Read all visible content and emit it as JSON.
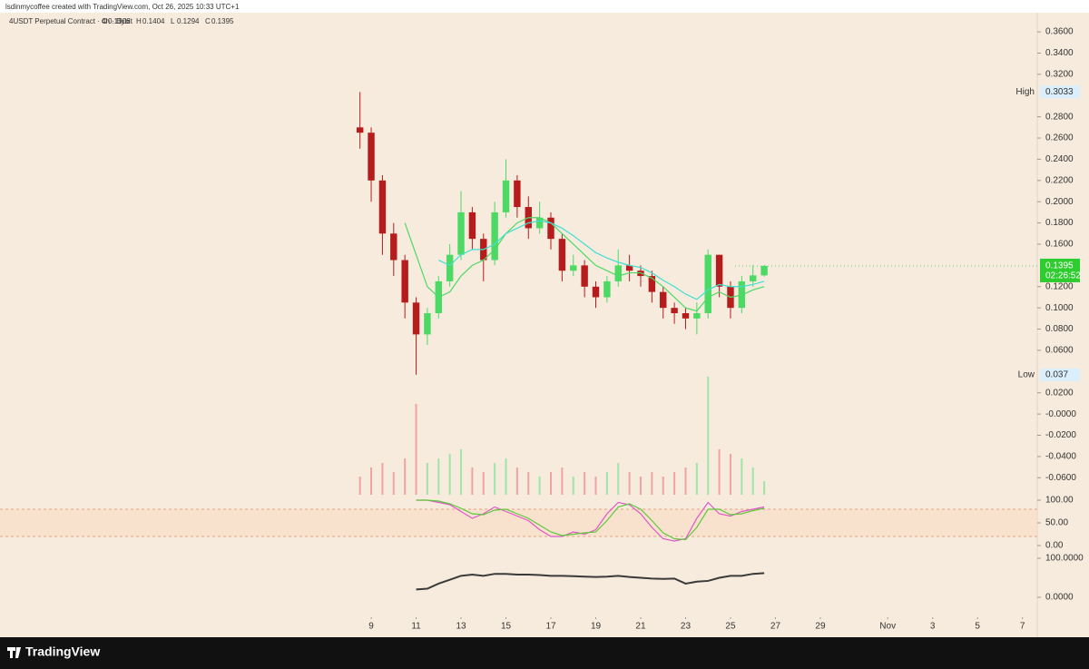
{
  "header": {
    "watermark": "lsdinmycoffee created with TradingView.com, Oct 26, 2025 10:33 UTC+1",
    "symbol": "4USDT Perpetual Contract · 4h · Bybit",
    "ohlc": [
      {
        "label": "O",
        "value": 0.1306
      },
      {
        "label": "H",
        "value": 0.1404
      },
      {
        "label": "L",
        "value": 0.1294
      },
      {
        "label": "C",
        "value": 0.1395
      }
    ]
  },
  "footer": {
    "brand": "TradingView"
  },
  "chart_data": {
    "type": "candlestick",
    "x": [
      8.5,
      9,
      9.5,
      10,
      10.5,
      11,
      11.5,
      12,
      12.5,
      13,
      13.5,
      14,
      14.5,
      15,
      15.5,
      16,
      16.5,
      17,
      17.5,
      18,
      18.5,
      19,
      19.5,
      20,
      20.5,
      21,
      21.5,
      22,
      22.5,
      23,
      23.5,
      24,
      24.5,
      25,
      25.5,
      26,
      26.5
    ],
    "open": [
      0.27,
      0.265,
      0.22,
      0.17,
      0.145,
      0.105,
      0.075,
      0.095,
      0.125,
      0.15,
      0.19,
      0.165,
      0.145,
      0.19,
      0.22,
      0.195,
      0.175,
      0.185,
      0.165,
      0.135,
      0.14,
      0.12,
      0.11,
      0.125,
      0.14,
      0.135,
      0.13,
      0.115,
      0.1,
      0.095,
      0.09,
      0.095,
      0.15,
      0.12,
      0.1,
      0.125,
      0.1306
    ],
    "high": [
      0.3033,
      0.27,
      0.225,
      0.18,
      0.15,
      0.11,
      0.1,
      0.13,
      0.16,
      0.21,
      0.195,
      0.17,
      0.2,
      0.24,
      0.225,
      0.205,
      0.2,
      0.19,
      0.17,
      0.15,
      0.145,
      0.125,
      0.13,
      0.155,
      0.15,
      0.14,
      0.135,
      0.12,
      0.105,
      0.1,
      0.105,
      0.155,
      0.15,
      0.125,
      0.13,
      0.14,
      0.1404
    ],
    "low": [
      0.25,
      0.2,
      0.15,
      0.13,
      0.09,
      0.037,
      0.065,
      0.09,
      0.12,
      0.145,
      0.155,
      0.125,
      0.14,
      0.185,
      0.185,
      0.165,
      0.17,
      0.155,
      0.125,
      0.13,
      0.11,
      0.1,
      0.105,
      0.12,
      0.125,
      0.12,
      0.105,
      0.09,
      0.085,
      0.08,
      0.075,
      0.09,
      0.11,
      0.09,
      0.095,
      0.12,
      0.1294
    ],
    "close": [
      0.265,
      0.22,
      0.17,
      0.145,
      0.105,
      0.075,
      0.095,
      0.125,
      0.15,
      0.19,
      0.165,
      0.145,
      0.19,
      0.22,
      0.195,
      0.175,
      0.185,
      0.165,
      0.135,
      0.14,
      0.12,
      0.11,
      0.125,
      0.14,
      0.135,
      0.13,
      0.115,
      0.1,
      0.095,
      0.09,
      0.095,
      0.15,
      0.12,
      0.1,
      0.125,
      0.1306,
      0.1395
    ],
    "volume": [
      20,
      30,
      35,
      25,
      40,
      100,
      35,
      40,
      45,
      50,
      30,
      25,
      35,
      40,
      30,
      25,
      20,
      25,
      30,
      20,
      25,
      20,
      25,
      35,
      25,
      20,
      25,
      20,
      25,
      30,
      35,
      130,
      50,
      45,
      40,
      30,
      15
    ],
    "series": [
      {
        "color": "#4cd964",
        "values": [
          null,
          null,
          null,
          null,
          0.18,
          0.15,
          0.12,
          0.11,
          0.115,
          0.13,
          0.14,
          0.145,
          0.155,
          0.17,
          0.18,
          0.185,
          0.185,
          0.18,
          0.17,
          0.16,
          0.15,
          0.14,
          0.135,
          0.13,
          0.133,
          0.133,
          0.128,
          0.12,
          0.11,
          0.1,
          0.097,
          0.11,
          0.115,
          0.11,
          0.112,
          0.117,
          0.12
        ]
      },
      {
        "color": "#40e0d0",
        "values": [
          null,
          null,
          null,
          null,
          null,
          null,
          null,
          0.145,
          0.14,
          0.15,
          0.155,
          0.155,
          0.16,
          0.17,
          0.175,
          0.18,
          0.182,
          0.18,
          0.175,
          0.168,
          0.16,
          0.152,
          0.147,
          0.143,
          0.14,
          0.138,
          0.133,
          0.126,
          0.12,
          0.113,
          0.108,
          0.117,
          0.122,
          0.12,
          0.12,
          0.122,
          0.125
        ]
      }
    ],
    "up_color": "#4cd964",
    "down_color": "#b71c1c",
    "xlim": [
      -7.53,
      38.66
    ],
    "xticks": [
      9,
      11,
      13,
      15,
      17,
      19,
      21,
      23,
      25,
      27,
      29,
      {
        "value": 32,
        "label": "Nov"
      },
      {
        "value": 34,
        "label": "3"
      },
      {
        "value": 36,
        "label": "5"
      },
      {
        "value": 38,
        "label": "7"
      }
    ],
    "ylim": [
      -0.076,
      0.39
    ],
    "yticks": [
      {
        "value": 0.36,
        "label": "0.3600"
      },
      {
        "value": 0.34,
        "label": "0.3400"
      },
      {
        "value": 0.32,
        "label": "0.3200"
      },
      {
        "value": 0.28,
        "label": "0.2800"
      },
      {
        "value": 0.26,
        "label": "0.2600"
      },
      {
        "value": 0.24,
        "label": "0.2400"
      },
      {
        "value": 0.22,
        "label": "0.2200"
      },
      {
        "value": 0.2,
        "label": "0.2000"
      },
      {
        "value": 0.18,
        "label": "0.1800"
      },
      {
        "value": 0.16,
        "label": "0.1600"
      },
      {
        "value": 0.12,
        "label": "0.1200"
      },
      {
        "value": 0.1,
        "label": "0.1000"
      },
      {
        "value": 0.08,
        "label": "0.0800"
      },
      {
        "value": 0.06,
        "label": "0.0600"
      },
      {
        "value": 0.02,
        "label": "0.0200"
      },
      {
        "value": 0,
        "label": "-0.0000"
      },
      {
        "value": -0.02,
        "label": "-0.0200"
      },
      {
        "value": -0.04,
        "label": "-0.0400"
      },
      {
        "value": -0.06,
        "label": "-0.0600"
      }
    ],
    "high_marker": {
      "label": "High",
      "value": 0.3033
    },
    "low_marker": {
      "label": "Low",
      "value": 0.037
    },
    "last_price": {
      "value": 0.1395,
      "countdown": "02:26:52"
    },
    "panels": [
      {
        "type": "line",
        "ylim": [
          0,
          100
        ],
        "yticks": [
          {
            "value": 100,
            "label": "100.00"
          },
          {
            "value": 50,
            "label": "50.00"
          },
          {
            "value": 0,
            "label": "0.00"
          }
        ],
        "bands": [
          20,
          80
        ],
        "series": [
          {
            "color": "#e056c8",
            "values": [
              null,
              null,
              null,
              null,
              null,
              100,
              100,
              95,
              90,
              75,
              60,
              70,
              85,
              75,
              65,
              55,
              35,
              20,
              20,
              30,
              25,
              35,
              70,
              95,
              90,
              70,
              40,
              15,
              10,
              15,
              60,
              95,
              70,
              65,
              75,
              80,
              85
            ]
          },
          {
            "color": "#5cc93a",
            "values": [
              null,
              null,
              null,
              null,
              null,
              100,
              100,
              98,
              92,
              82,
              70,
              68,
              78,
              80,
              70,
              60,
              45,
              30,
              22,
              25,
              28,
              30,
              55,
              85,
              92,
              80,
              55,
              28,
              15,
              13,
              40,
              80,
              80,
              68,
              70,
              77,
              82
            ]
          }
        ]
      },
      {
        "type": "line",
        "ylim": [
          0,
          100
        ],
        "yticks": [
          {
            "value": 100,
            "label": "100.0000"
          },
          {
            "value": 0,
            "label": "0.0000"
          }
        ],
        "series": [
          {
            "color": "#3a3a3a",
            "values": [
              null,
              null,
              null,
              null,
              null,
              20,
              22,
              35,
              45,
              55,
              58,
              55,
              60,
              60,
              58,
              58,
              57,
              55,
              55,
              54,
              53,
              52,
              53,
              55,
              52,
              50,
              48,
              47,
              48,
              35,
              40,
              42,
              50,
              55,
              55,
              60,
              62
            ]
          }
        ]
      }
    ]
  }
}
